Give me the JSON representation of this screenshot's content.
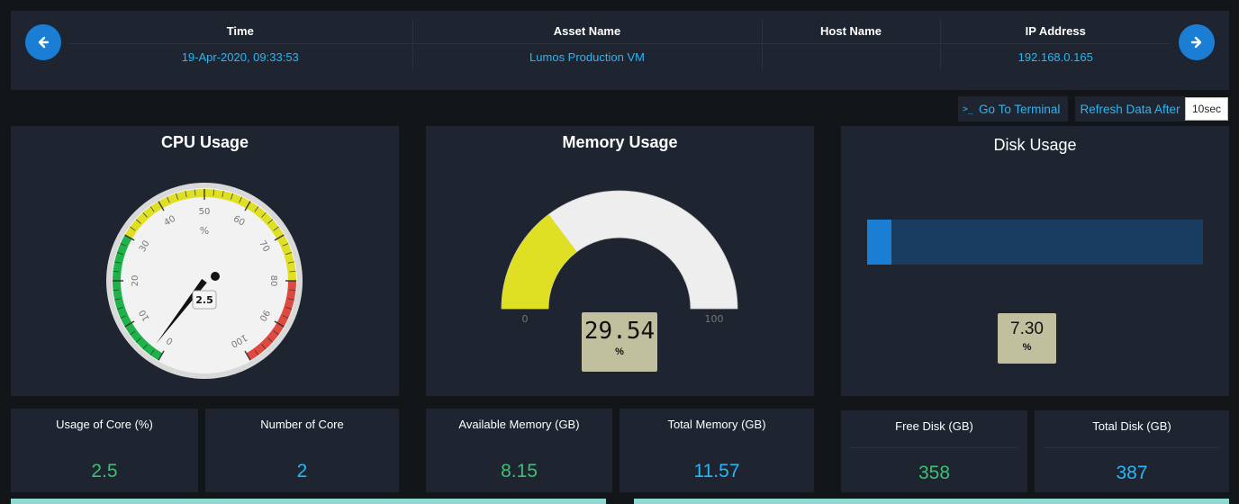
{
  "header": {
    "columns": [
      "Time",
      "Asset Name",
      "Host Name",
      "IP Address"
    ],
    "values": [
      "19-Apr-2020, 09:33:53",
      "Lumos Production VM",
      "",
      "192.168.0.165"
    ]
  },
  "toolbar": {
    "terminal_prompt": ">_",
    "terminal_label": "Go To Terminal",
    "refresh_label": "Refresh Data After",
    "refresh_value": "10sec"
  },
  "cpu": {
    "title": "CPU Usage",
    "unit": "%",
    "value": 2.5,
    "value_label": "2.5",
    "min": 0,
    "max": 100,
    "ticks": [
      "0",
      "10",
      "20",
      "30",
      "40",
      "50",
      "60",
      "70",
      "80",
      "90",
      "100"
    ],
    "colors": {
      "green": "#20b24a",
      "yellow": "#dfe023",
      "red": "#e0493e"
    }
  },
  "memory": {
    "title": "Memory Usage",
    "value": 29.54,
    "value_label": "29.54",
    "unit": "%",
    "min_label": "0",
    "max_label": "100",
    "fill_color": "#dfe023",
    "track_color": "#eeeeee"
  },
  "disk": {
    "title": "Disk Usage",
    "value": 7.3,
    "value_label": "7.30",
    "unit": "%",
    "fill_color": "#1a7fd4",
    "track_color": "#183d60"
  },
  "stats": [
    {
      "label": "Usage of Core (%)",
      "value": "2.5",
      "color": "green"
    },
    {
      "label": "Number of Core",
      "value": "2",
      "color": "blue"
    },
    {
      "label": "Available Memory (GB)",
      "value": "8.15",
      "color": "green"
    },
    {
      "label": "Total Memory (GB)",
      "value": "11.57",
      "color": "blue"
    },
    {
      "label": "Free Disk (GB)",
      "value": "358",
      "color": "green"
    },
    {
      "label": "Total Disk (GB)",
      "value": "387",
      "color": "blue"
    }
  ]
}
